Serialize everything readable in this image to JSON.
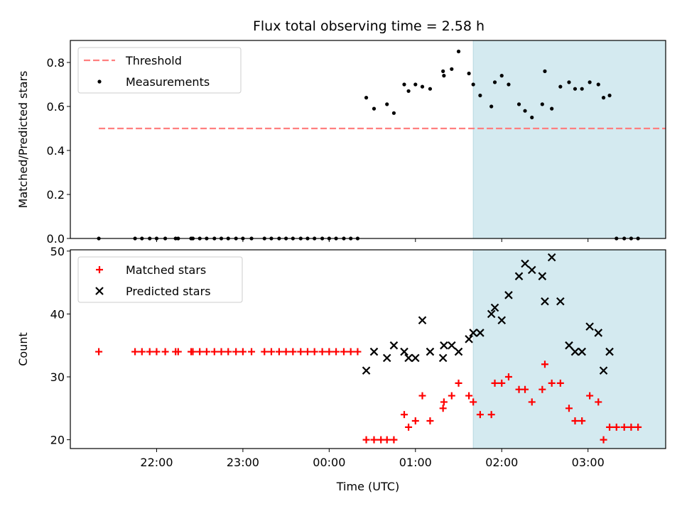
{
  "chart_data": {
    "type": "scatter",
    "title": "Flux total observing time = 2.58 h",
    "xlabel": "Time (UTC)",
    "x_ticks": [
      "22:00",
      "23:00",
      "00:00",
      "01:00",
      "02:00",
      "03:00"
    ],
    "x_tick_hours": [
      22,
      23,
      24,
      25,
      26,
      27
    ],
    "xlim_hours": [
      21.0,
      27.9
    ],
    "observing_window_hours": [
      25.67,
      28.25
    ],
    "observing_window_color": "#d4eaf0",
    "panels": [
      {
        "id": "ratio",
        "ylabel": "Matched/Predicted stars",
        "ylim": [
          0,
          0.9
        ],
        "y_ticks": [
          0.0,
          0.2,
          0.4,
          0.6,
          0.8
        ],
        "y_tick_labels": [
          "0.0",
          "0.2",
          "0.4",
          "0.6",
          "0.8"
        ],
        "legend": "top-left",
        "series": [
          {
            "name": "Threshold",
            "kind": "dashed-line",
            "color": "#ff7f7f",
            "x": [
              21.33,
              27.97
            ],
            "y": [
              0.5,
              0.5
            ]
          },
          {
            "name": "Measurements",
            "kind": "dot",
            "color": "#000000",
            "points": [
              [
                21.33,
                0.0
              ],
              [
                21.75,
                0.0
              ],
              [
                21.83,
                0.0
              ],
              [
                21.92,
                0.0
              ],
              [
                22.0,
                0.0
              ],
              [
                22.1,
                0.0
              ],
              [
                22.22,
                0.0
              ],
              [
                22.25,
                0.0
              ],
              [
                22.4,
                0.0
              ],
              [
                22.42,
                0.0
              ],
              [
                22.5,
                0.0
              ],
              [
                22.58,
                0.0
              ],
              [
                22.67,
                0.0
              ],
              [
                22.75,
                0.0
              ],
              [
                22.83,
                0.0
              ],
              [
                22.92,
                0.0
              ],
              [
                23.0,
                0.0
              ],
              [
                23.1,
                0.0
              ],
              [
                23.25,
                0.0
              ],
              [
                23.33,
                0.0
              ],
              [
                23.42,
                0.0
              ],
              [
                23.5,
                0.0
              ],
              [
                23.58,
                0.0
              ],
              [
                23.67,
                0.0
              ],
              [
                23.75,
                0.0
              ],
              [
                23.83,
                0.0
              ],
              [
                23.92,
                0.0
              ],
              [
                24.0,
                0.0
              ],
              [
                24.08,
                0.0
              ],
              [
                24.17,
                0.0
              ],
              [
                24.25,
                0.0
              ],
              [
                24.33,
                0.0
              ],
              [
                24.43,
                0.64
              ],
              [
                24.52,
                0.59
              ],
              [
                24.67,
                0.61
              ],
              [
                24.75,
                0.57
              ],
              [
                24.87,
                0.7
              ],
              [
                24.92,
                0.67
              ],
              [
                25.0,
                0.7
              ],
              [
                25.08,
                0.69
              ],
              [
                25.17,
                0.68
              ],
              [
                25.32,
                0.76
              ],
              [
                25.33,
                0.74
              ],
              [
                25.42,
                0.77
              ],
              [
                25.5,
                0.85
              ],
              [
                25.62,
                0.75
              ],
              [
                25.67,
                0.7
              ],
              [
                25.75,
                0.65
              ],
              [
                25.88,
                0.6
              ],
              [
                25.92,
                0.71
              ],
              [
                26.0,
                0.74
              ],
              [
                26.08,
                0.7
              ],
              [
                26.2,
                0.61
              ],
              [
                26.27,
                0.58
              ],
              [
                26.35,
                0.55
              ],
              [
                26.47,
                0.61
              ],
              [
                26.5,
                0.76
              ],
              [
                26.58,
                0.59
              ],
              [
                26.68,
                0.69
              ],
              [
                26.78,
                0.71
              ],
              [
                26.85,
                0.68
              ],
              [
                26.93,
                0.68
              ],
              [
                27.02,
                0.71
              ],
              [
                27.12,
                0.7
              ],
              [
                27.18,
                0.64
              ],
              [
                27.25,
                0.65
              ],
              [
                27.33,
                0.0
              ],
              [
                27.42,
                0.0
              ],
              [
                27.5,
                0.0
              ],
              [
                27.58,
                0.0
              ]
            ]
          }
        ]
      },
      {
        "id": "count",
        "ylabel": "Count",
        "ylim": [
          18.6,
          50.2
        ],
        "y_ticks": [
          20,
          30,
          40,
          50
        ],
        "y_tick_labels": [
          "20",
          "30",
          "40",
          "50"
        ],
        "legend": "top-left",
        "series": [
          {
            "name": "Matched stars",
            "kind": "plus",
            "color": "#ff0000",
            "points": [
              [
                21.33,
                34
              ],
              [
                21.75,
                34
              ],
              [
                21.83,
                34
              ],
              [
                21.92,
                34
              ],
              [
                22.0,
                34
              ],
              [
                22.1,
                34
              ],
              [
                22.22,
                34
              ],
              [
                22.25,
                34
              ],
              [
                22.4,
                34
              ],
              [
                22.42,
                34
              ],
              [
                22.5,
                34
              ],
              [
                22.58,
                34
              ],
              [
                22.67,
                34
              ],
              [
                22.75,
                34
              ],
              [
                22.83,
                34
              ],
              [
                22.92,
                34
              ],
              [
                23.0,
                34
              ],
              [
                23.1,
                34
              ],
              [
                23.25,
                34
              ],
              [
                23.33,
                34
              ],
              [
                23.42,
                34
              ],
              [
                23.5,
                34
              ],
              [
                23.58,
                34
              ],
              [
                23.67,
                34
              ],
              [
                23.75,
                34
              ],
              [
                23.83,
                34
              ],
              [
                23.92,
                34
              ],
              [
                24.0,
                34
              ],
              [
                24.08,
                34
              ],
              [
                24.17,
                34
              ],
              [
                24.25,
                34
              ],
              [
                24.33,
                34
              ],
              [
                24.43,
                20
              ],
              [
                24.52,
                20
              ],
              [
                24.6,
                20
              ],
              [
                24.67,
                20
              ],
              [
                24.75,
                20
              ],
              [
                24.87,
                24
              ],
              [
                24.92,
                22
              ],
              [
                25.0,
                23
              ],
              [
                25.08,
                27
              ],
              [
                25.17,
                23
              ],
              [
                25.32,
                25
              ],
              [
                25.33,
                26
              ],
              [
                25.42,
                27
              ],
              [
                25.5,
                29
              ],
              [
                25.62,
                27
              ],
              [
                25.67,
                26
              ],
              [
                25.75,
                24
              ],
              [
                25.88,
                24
              ],
              [
                25.92,
                29
              ],
              [
                26.0,
                29
              ],
              [
                26.08,
                30
              ],
              [
                26.2,
                28
              ],
              [
                26.27,
                28
              ],
              [
                26.35,
                26
              ],
              [
                26.47,
                28
              ],
              [
                26.5,
                32
              ],
              [
                26.58,
                29
              ],
              [
                26.68,
                29
              ],
              [
                26.78,
                25
              ],
              [
                26.85,
                23
              ],
              [
                26.93,
                23
              ],
              [
                27.02,
                27
              ],
              [
                27.12,
                26
              ],
              [
                27.18,
                20
              ],
              [
                27.25,
                22
              ],
              [
                27.33,
                22
              ],
              [
                27.42,
                22
              ],
              [
                27.5,
                22
              ],
              [
                27.58,
                22
              ]
            ]
          },
          {
            "name": "Predicted stars",
            "kind": "x",
            "color": "#000000",
            "points": [
              [
                24.43,
                31
              ],
              [
                24.52,
                34
              ],
              [
                24.67,
                33
              ],
              [
                24.75,
                35
              ],
              [
                24.87,
                34
              ],
              [
                24.92,
                33
              ],
              [
                25.0,
                33
              ],
              [
                25.08,
                39
              ],
              [
                25.17,
                34
              ],
              [
                25.32,
                33
              ],
              [
                25.33,
                35
              ],
              [
                25.42,
                35
              ],
              [
                25.5,
                34
              ],
              [
                25.62,
                36
              ],
              [
                25.67,
                37
              ],
              [
                25.75,
                37
              ],
              [
                25.88,
                40
              ],
              [
                25.92,
                41
              ],
              [
                26.0,
                39
              ],
              [
                26.08,
                43
              ],
              [
                26.2,
                46
              ],
              [
                26.27,
                48
              ],
              [
                26.35,
                47
              ],
              [
                26.47,
                46
              ],
              [
                26.5,
                42
              ],
              [
                26.58,
                49
              ],
              [
                26.68,
                42
              ],
              [
                26.78,
                35
              ],
              [
                26.85,
                34
              ],
              [
                26.93,
                34
              ],
              [
                27.02,
                38
              ],
              [
                27.12,
                37
              ],
              [
                27.18,
                31
              ],
              [
                27.25,
                34
              ]
            ]
          }
        ]
      }
    ]
  }
}
